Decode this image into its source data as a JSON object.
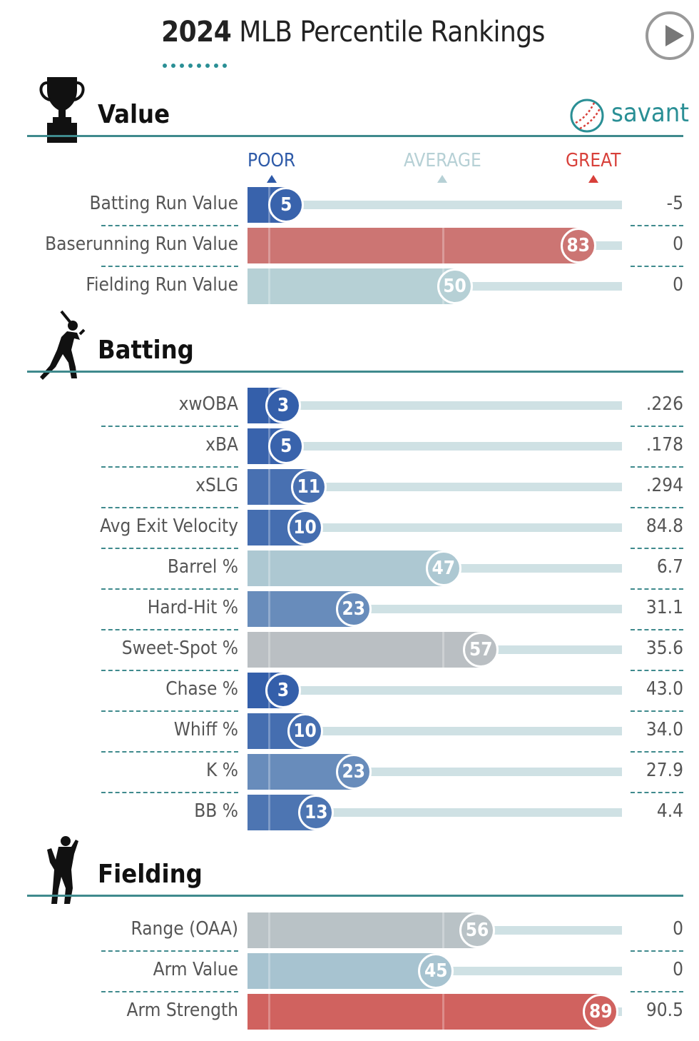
{
  "header": {
    "year": "2024",
    "title_rest": "MLB Percentile Rankings"
  },
  "brand": {
    "name": "savant"
  },
  "legend": {
    "poor": "POOR",
    "average": "AVERAGE",
    "great": "GREAT"
  },
  "colors": {
    "poor": "#2e5aa8",
    "average": "#b6d0d5",
    "great": "#d8403a",
    "accent": "#3f8a8d"
  },
  "chart_data": {
    "type": "bar",
    "xlim": [
      0,
      100
    ],
    "sections": [
      {
        "title": "Value",
        "icon": "trophy-icon",
        "rows": [
          {
            "metric": "Batting Run Value",
            "percentile": 5,
            "value": "-5"
          },
          {
            "metric": "Baserunning Run Value",
            "percentile": 83,
            "value": "0"
          },
          {
            "metric": "Fielding Run Value",
            "percentile": 50,
            "value": "0"
          }
        ]
      },
      {
        "title": "Batting",
        "icon": "batter-icon",
        "rows": [
          {
            "metric": "xwOBA",
            "percentile": 3,
            "value": ".226"
          },
          {
            "metric": "xBA",
            "percentile": 5,
            "value": ".178"
          },
          {
            "metric": "xSLG",
            "percentile": 11,
            "value": ".294"
          },
          {
            "metric": "Avg Exit Velocity",
            "percentile": 10,
            "value": "84.8"
          },
          {
            "metric": "Barrel %",
            "percentile": 47,
            "value": "6.7"
          },
          {
            "metric": "Hard-Hit %",
            "percentile": 23,
            "value": "31.1"
          },
          {
            "metric": "Sweet-Spot %",
            "percentile": 57,
            "value": "35.6"
          },
          {
            "metric": "Chase %",
            "percentile": 3,
            "value": "43.0"
          },
          {
            "metric": "Whiff %",
            "percentile": 10,
            "value": "34.0"
          },
          {
            "metric": "K %",
            "percentile": 23,
            "value": "27.9"
          },
          {
            "metric": "BB %",
            "percentile": 13,
            "value": "4.4"
          }
        ]
      },
      {
        "title": "Fielding",
        "icon": "fielder-icon",
        "rows": [
          {
            "metric": "Range (OAA)",
            "percentile": 56,
            "value": "0"
          },
          {
            "metric": "Arm Value",
            "percentile": 45,
            "value": "0"
          },
          {
            "metric": "Arm Strength",
            "percentile": 89,
            "value": "90.5"
          }
        ]
      }
    ]
  }
}
